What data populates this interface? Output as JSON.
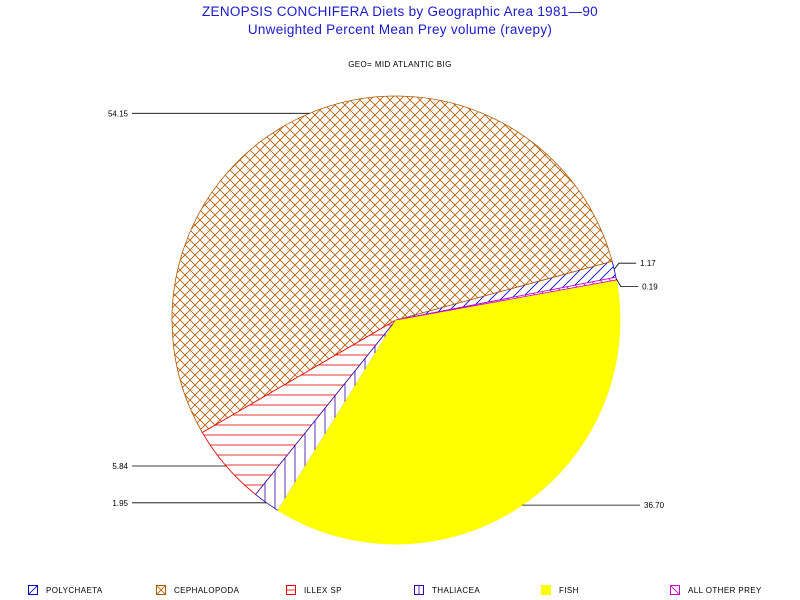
{
  "chart_data": {
    "type": "pie",
    "title": "ZENOPSIS CONCHIFERA Diets by Geographic Area 1981—90",
    "subtitle": "Unweighted Percent Mean Prey volume (ravepy)",
    "group_label": "GEO= MID ATLANTIC BIG",
    "slices": [
      {
        "name": "POLYCHAETA",
        "value": 1.17,
        "label": "1.17",
        "color": "#0000cc",
        "pattern": "diag-right"
      },
      {
        "name": "CEPHALOPODA",
        "value": 54.15,
        "label": "54.15",
        "color": "#b35900",
        "pattern": "crosshatch"
      },
      {
        "name": "ILLEX SP",
        "value": 5.84,
        "label": "5.84",
        "color": "#e60000",
        "pattern": "horizontal"
      },
      {
        "name": "THALIACEA",
        "value": 1.95,
        "label": "1.95",
        "color": "#3300aa",
        "pattern": "vertical"
      },
      {
        "name": "FISH",
        "value": 36.7,
        "label": "36.70",
        "color": "#ffff00",
        "pattern": "solid"
      },
      {
        "name": "ALL OTHER PREY",
        "value": 0.19,
        "label": "0.19",
        "color": "#cc00cc",
        "pattern": "diag-left"
      }
    ]
  }
}
